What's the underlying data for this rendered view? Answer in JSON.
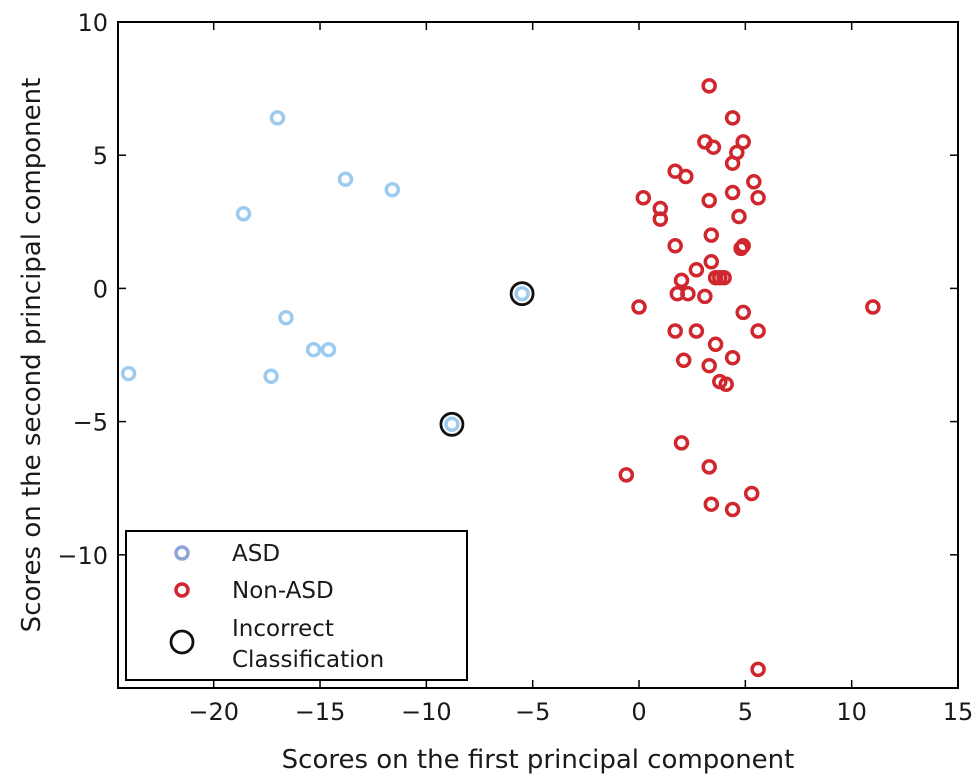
{
  "chart_data": {
    "type": "scatter",
    "xlabel": "Scores on the first principal component",
    "ylabel": "Scores on the second principal component",
    "xlim": [
      -24.5,
      15
    ],
    "ylim": [
      -15,
      10
    ],
    "xticks": [
      -20,
      -15,
      -10,
      -5,
      0,
      5,
      10,
      15
    ],
    "yticks": [
      10,
      5,
      0,
      -5,
      -10
    ],
    "xtick_labels": [
      "−20",
      "−15",
      "−10",
      "−5",
      "0",
      "5",
      "10",
      "15"
    ],
    "ytick_labels": [
      "10",
      "5",
      "0",
      "−5",
      "−10"
    ],
    "grid": false,
    "legend_position": "bottom-left",
    "colors": {
      "ASD": "#9dcbef",
      "Non-ASD": "#d0262d",
      "Incorrect": "#111111"
    },
    "series": [
      {
        "name": "ASD",
        "points": [
          [
            -24.0,
            -3.2
          ],
          [
            -18.6,
            2.8
          ],
          [
            -17.0,
            6.4
          ],
          [
            -17.3,
            -3.3
          ],
          [
            -16.6,
            -1.1
          ],
          [
            -15.3,
            -2.3
          ],
          [
            -14.6,
            -2.3
          ],
          [
            -13.8,
            4.1
          ],
          [
            -11.6,
            3.7
          ],
          [
            -8.8,
            -5.1
          ],
          [
            -5.5,
            -0.2
          ]
        ]
      },
      {
        "name": "Non-ASD",
        "points": [
          [
            3.3,
            7.6
          ],
          [
            4.4,
            6.4
          ],
          [
            3.1,
            5.5
          ],
          [
            3.5,
            5.3
          ],
          [
            4.9,
            5.5
          ],
          [
            4.6,
            5.1
          ],
          [
            4.4,
            4.7
          ],
          [
            1.7,
            4.4
          ],
          [
            2.2,
            4.2
          ],
          [
            5.4,
            4.0
          ],
          [
            4.4,
            3.6
          ],
          [
            5.6,
            3.4
          ],
          [
            0.2,
            3.4
          ],
          [
            3.3,
            3.3
          ],
          [
            1.0,
            3.0
          ],
          [
            1.0,
            2.6
          ],
          [
            4.7,
            2.7
          ],
          [
            3.4,
            2.0
          ],
          [
            1.7,
            1.6
          ],
          [
            4.8,
            1.5
          ],
          [
            4.9,
            1.6
          ],
          [
            3.4,
            1.0
          ],
          [
            2.7,
            0.7
          ],
          [
            3.6,
            0.4
          ],
          [
            3.8,
            0.4
          ],
          [
            4.0,
            0.4
          ],
          [
            2.0,
            0.3
          ],
          [
            1.8,
            -0.2
          ],
          [
            2.3,
            -0.2
          ],
          [
            3.1,
            -0.3
          ],
          [
            0.0,
            -0.7
          ],
          [
            11.0,
            -0.7
          ],
          [
            4.9,
            -0.9
          ],
          [
            1.7,
            -1.6
          ],
          [
            2.7,
            -1.6
          ],
          [
            5.6,
            -1.6
          ],
          [
            3.6,
            -2.1
          ],
          [
            4.4,
            -2.6
          ],
          [
            2.1,
            -2.7
          ],
          [
            3.3,
            -2.9
          ],
          [
            3.8,
            -3.5
          ],
          [
            4.1,
            -3.6
          ],
          [
            2.0,
            -5.8
          ],
          [
            3.3,
            -6.7
          ],
          [
            -0.6,
            -7.0
          ],
          [
            5.3,
            -7.7
          ],
          [
            3.4,
            -8.1
          ],
          [
            4.4,
            -8.3
          ],
          [
            5.6,
            -14.3
          ]
        ]
      },
      {
        "name": "Incorrect\nClassification",
        "points": [
          [
            -8.8,
            -5.1
          ],
          [
            -5.5,
            -0.2
          ]
        ]
      }
    ]
  },
  "legend": {
    "items": [
      {
        "label": "ASD"
      },
      {
        "label": "Non-ASD"
      },
      {
        "label_line1": "Incorrect",
        "label_line2": "Classification"
      }
    ]
  }
}
